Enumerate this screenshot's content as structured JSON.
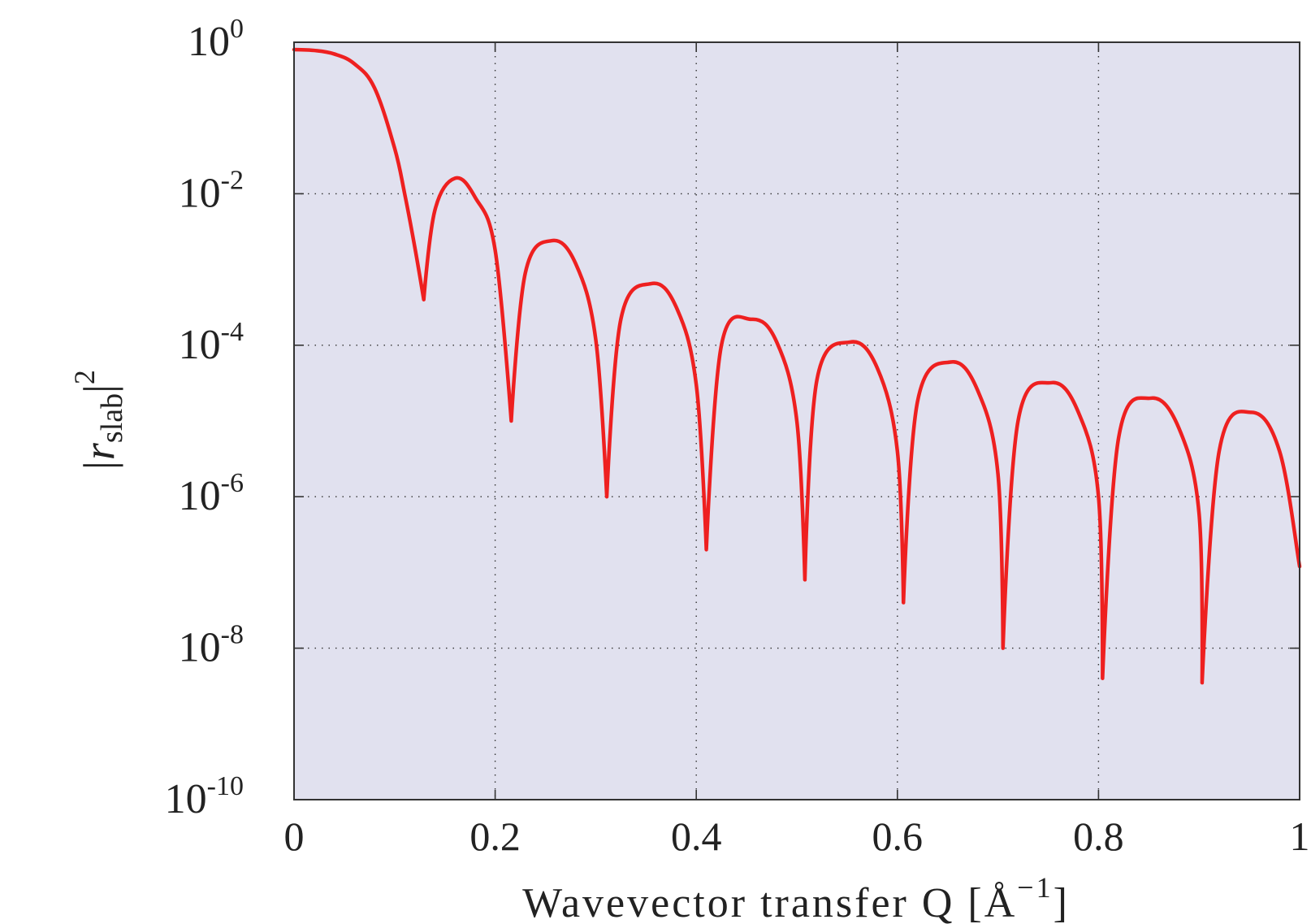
{
  "chart_data": {
    "type": "line",
    "title": "",
    "xlabel": "Wavevector transfer Q [Å",
    "xlabel_sup": "−1",
    "xlabel_close": "]",
    "ylabel_base": "|r",
    "ylabel_sub": "slab",
    "ylabel_close": "|",
    "ylabel_sup": "2",
    "xlim": [
      0,
      1
    ],
    "ylim": [
      1e-10,
      1
    ],
    "yscale": "log",
    "grid": true,
    "x_ticks": [
      {
        "value": 0,
        "label": "0"
      },
      {
        "value": 0.2,
        "label": "0.2"
      },
      {
        "value": 0.4,
        "label": "0.4"
      },
      {
        "value": 0.6,
        "label": "0.6"
      },
      {
        "value": 0.8,
        "label": "0.8"
      },
      {
        "value": 1,
        "label": "1"
      }
    ],
    "y_ticks": [
      {
        "value": 1,
        "base": "10",
        "exp": "0"
      },
      {
        "value": 0.01,
        "base": "10",
        "exp": "-2"
      },
      {
        "value": 0.0001,
        "base": "10",
        "exp": "-4"
      },
      {
        "value": 1e-06,
        "base": "10",
        "exp": "-6"
      },
      {
        "value": 1e-08,
        "base": "10",
        "exp": "-8"
      },
      {
        "value": 1e-10,
        "base": "10",
        "exp": "-10"
      }
    ],
    "series": [
      {
        "color": "#ee2020",
        "x": [
          0,
          0.02,
          0.04,
          0.06,
          0.08,
          0.1,
          0.11,
          0.12,
          0.129,
          0.14,
          0.16,
          0.18,
          0.2,
          0.216,
          0.23,
          0.256,
          0.28,
          0.3,
          0.311,
          0.325,
          0.355,
          0.38,
          0.4,
          0.41,
          0.425,
          0.455,
          0.48,
          0.5,
          0.508,
          0.52,
          0.553,
          0.58,
          0.6,
          0.606,
          0.62,
          0.653,
          0.68,
          0.7,
          0.705,
          0.72,
          0.753,
          0.78,
          0.8,
          0.804,
          0.82,
          0.852,
          0.88,
          0.9,
          0.903,
          0.92,
          0.952,
          0.98,
          1.0
        ],
        "y": [
          0.8,
          0.78,
          0.7,
          0.52,
          0.25,
          0.04,
          0.01,
          0.002,
          0.0004,
          0.006,
          0.016,
          0.009,
          0.0018,
          1e-05,
          0.0009,
          0.0024,
          0.0012,
          0.00012,
          1e-06,
          0.00022,
          0.00065,
          0.00032,
          3e-05,
          2e-07,
          0.0001,
          0.00022,
          0.00011,
          1e-05,
          8e-08,
          3.5e-05,
          0.00011,
          5e-05,
          4e-06,
          4e-08,
          1.8e-05,
          6e-05,
          2.5e-05,
          2e-06,
          1e-08,
          1e-05,
          3.2e-05,
          1.3e-05,
          1e-06,
          4e-09,
          6e-06,
          2e-05,
          8e-06,
          6e-07,
          3.5e-09,
          4e-06,
          1.3e-05,
          4e-06,
          1.2e-07
        ]
      }
    ]
  }
}
